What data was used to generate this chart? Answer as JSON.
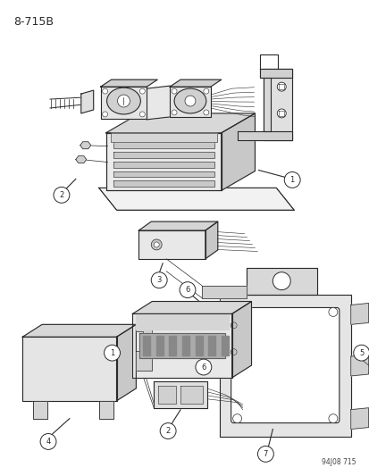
{
  "title": "8-715B",
  "watermark": "94J08 715",
  "bg_color": "#ffffff",
  "lc": "#2a2a2a",
  "fig_w": 4.14,
  "fig_h": 5.33,
  "dpi": 100,
  "title_fontsize": 9,
  "callout_fontsize": 6,
  "callout_r": 0.018,
  "wm_fontsize": 5.5
}
